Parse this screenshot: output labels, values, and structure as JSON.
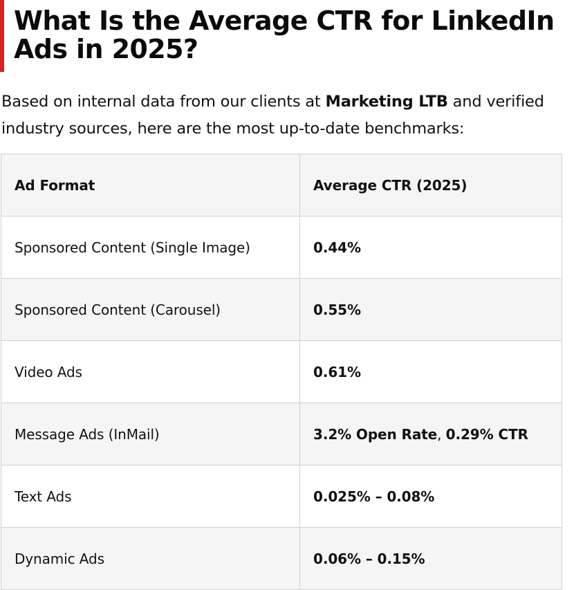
{
  "article": {
    "heading": "What Is the Average CTR for LinkedIn Ads in 2025?",
    "intro": {
      "part1": "Based on internal data from our clients at ",
      "brand": "Marketing LTB",
      "part2": " and verified industry sources, here are the most up-to-date benchmarks:"
    },
    "accent_color": "#e0201c"
  },
  "table": {
    "headers": {
      "format": "Ad Format",
      "ctr": "Average CTR (2025)"
    },
    "rows": [
      {
        "format": "Sponsored Content (Single Image)",
        "ctr": "0.44%"
      },
      {
        "format": "Sponsored Content (Carousel)",
        "ctr": "0.55%"
      },
      {
        "format": "Video Ads",
        "ctr": "0.61%"
      },
      {
        "format": "Message Ads (InMail)",
        "ctr_part1": "3.2% Open Rate",
        "ctr_sep": ", ",
        "ctr_part2": "0.29% CTR"
      },
      {
        "format": "Text Ads",
        "ctr": "0.025% – 0.08%"
      },
      {
        "format": "Dynamic Ads",
        "ctr": "0.06% – 0.15%"
      }
    ]
  }
}
